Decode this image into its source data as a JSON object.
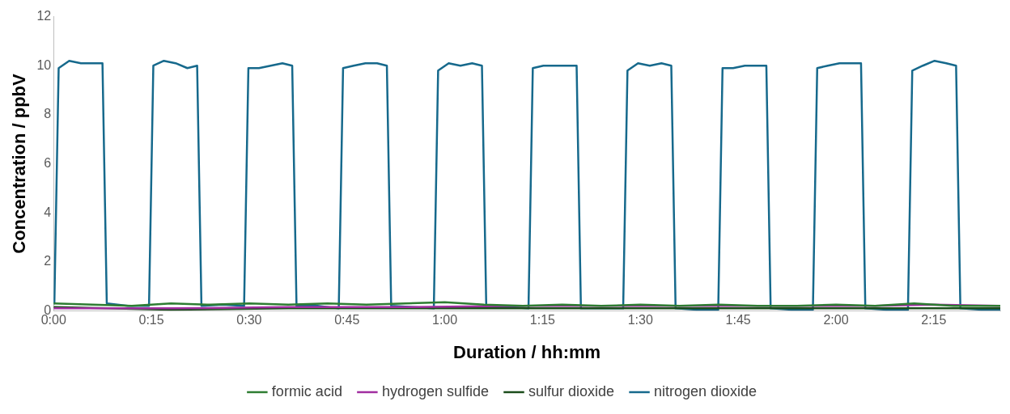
{
  "chart_data": {
    "type": "line",
    "xlabel": "Duration / hh:mm",
    "ylabel": "Concentration / ppbV",
    "xlim": [
      0,
      2.42
    ],
    "ylim": [
      0,
      12
    ],
    "xticks": [
      {
        "value": 0,
        "label": "0:00"
      },
      {
        "value": 0.25,
        "label": "0:15"
      },
      {
        "value": 0.5,
        "label": "0:30"
      },
      {
        "value": 0.75,
        "label": "0:45"
      },
      {
        "value": 1,
        "label": "1:00"
      },
      {
        "value": 1.25,
        "label": "1:15"
      },
      {
        "value": 1.5,
        "label": "1:30"
      },
      {
        "value": 1.75,
        "label": "1:45"
      },
      {
        "value": 2,
        "label": "2:00"
      },
      {
        "value": 2.25,
        "label": "2:15"
      }
    ],
    "yticks": [
      0,
      2,
      4,
      6,
      8,
      10,
      12
    ],
    "grid": false,
    "legend": "bottom",
    "marker": "none",
    "line_style": "solid",
    "series": [
      {
        "name": "formic acid",
        "color": "#2e7d32",
        "x": [
          0,
          0.1,
          0.2,
          0.3,
          0.4,
          0.5,
          0.6,
          0.7,
          0.8,
          0.9,
          1.0,
          1.1,
          1.2,
          1.3,
          1.4,
          1.5,
          1.6,
          1.7,
          1.8,
          1.9,
          2.0,
          2.1,
          2.2,
          2.3,
          2.42
        ],
        "values": [
          0.3,
          0.25,
          0.2,
          0.3,
          0.25,
          0.3,
          0.25,
          0.3,
          0.25,
          0.3,
          0.35,
          0.25,
          0.2,
          0.25,
          0.2,
          0.25,
          0.2,
          0.25,
          0.2,
          0.2,
          0.25,
          0.2,
          0.3,
          0.2,
          0.2
        ]
      },
      {
        "name": "hydrogen sulfide",
        "color": "#a12ea0",
        "x": [
          0,
          0.3,
          0.6,
          0.9,
          1.2,
          1.5,
          1.8,
          2.1,
          2.25,
          2.42
        ],
        "values": [
          0.1,
          0.1,
          0.15,
          0.15,
          0.2,
          0.2,
          0.2,
          0.2,
          0.25,
          0.2
        ]
      },
      {
        "name": "sulfur dioxide",
        "color": "#1b4d1b",
        "x": [
          0,
          0.3,
          0.6,
          0.9,
          1.2,
          1.5,
          1.8,
          2.1,
          2.42
        ],
        "values": [
          0.15,
          0.05,
          0.1,
          0.1,
          0.1,
          0.1,
          0.1,
          0.1,
          0.1
        ]
      },
      {
        "name": "nitrogen dioxide",
        "color": "#16698c",
        "x": [
          0,
          0.002,
          0.013,
          0.04,
          0.07,
          0.1,
          0.125,
          0.136,
          0.19,
          0.244,
          0.255,
          0.282,
          0.312,
          0.342,
          0.367,
          0.378,
          0.432,
          0.487,
          0.498,
          0.525,
          0.555,
          0.585,
          0.61,
          0.621,
          0.675,
          0.729,
          0.74,
          0.767,
          0.797,
          0.827,
          0.852,
          0.863,
          0.917,
          0.972,
          0.983,
          1.01,
          1.04,
          1.07,
          1.095,
          1.106,
          1.16,
          1.214,
          1.225,
          1.252,
          1.282,
          1.312,
          1.337,
          1.348,
          1.402,
          1.456,
          1.467,
          1.494,
          1.524,
          1.554,
          1.579,
          1.59,
          1.644,
          1.699,
          1.71,
          1.737,
          1.767,
          1.797,
          1.822,
          1.833,
          1.887,
          1.941,
          1.952,
          1.979,
          2.009,
          2.039,
          2.064,
          2.075,
          2.129,
          2.184,
          2.195,
          2.222,
          2.252,
          2.282,
          2.307,
          2.318,
          2.372,
          2.42
        ],
        "values": [
          0.3,
          0.3,
          9.9,
          10.2,
          10.1,
          10.1,
          10.1,
          0.3,
          0.2,
          0.2,
          10.0,
          10.2,
          10.1,
          9.9,
          10.0,
          0.2,
          0.25,
          0.2,
          9.9,
          9.9,
          10.0,
          10.1,
          10.0,
          0.2,
          0.2,
          0.1,
          9.9,
          10.0,
          10.1,
          10.1,
          10.0,
          0.2,
          0.15,
          0.1,
          9.8,
          10.1,
          10.0,
          10.1,
          10.0,
          0.2,
          0.15,
          0.1,
          9.9,
          10.0,
          10.0,
          10.0,
          10.0,
          0.1,
          0.1,
          0.1,
          9.8,
          10.1,
          10.0,
          10.1,
          10.0,
          0.1,
          0.05,
          0.05,
          9.9,
          9.9,
          10.0,
          10.0,
          10.0,
          0.1,
          0.05,
          0.05,
          9.9,
          10.0,
          10.1,
          10.1,
          10.1,
          0.1,
          0.05,
          0.05,
          9.8,
          10.0,
          10.2,
          10.1,
          10.0,
          0.1,
          0.05,
          0.05
        ]
      }
    ]
  }
}
